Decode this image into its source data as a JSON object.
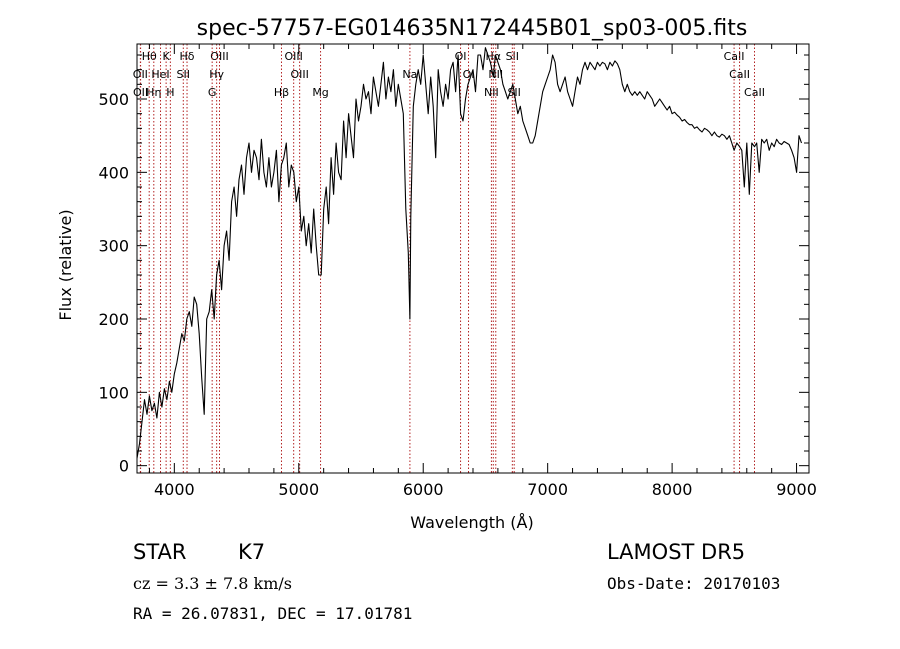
{
  "chart_data": {
    "type": "line",
    "title": "spec-57757-EG014635N172445B01_sp03-005.fits",
    "xlabel": "Wavelength (Å)",
    "ylabel": "Flux (relative)",
    "xlim": [
      3700,
      9100
    ],
    "ylim": [
      -10,
      575
    ],
    "x_ticks": [
      4000,
      5000,
      6000,
      7000,
      8000,
      9000
    ],
    "y_ticks": [
      0,
      100,
      200,
      300,
      400,
      500
    ],
    "grid": false,
    "series": [
      {
        "name": "",
        "x": [
          3700,
          3720,
          3740,
          3760,
          3780,
          3800,
          3820,
          3840,
          3860,
          3880,
          3900,
          3920,
          3940,
          3960,
          3980,
          4000,
          4020,
          4040,
          4060,
          4080,
          4100,
          4120,
          4140,
          4160,
          4180,
          4200,
          4220,
          4240,
          4260,
          4280,
          4300,
          4320,
          4340,
          4360,
          4380,
          4400,
          4420,
          4440,
          4460,
          4480,
          4500,
          4520,
          4540,
          4560,
          4580,
          4600,
          4620,
          4640,
          4660,
          4680,
          4700,
          4720,
          4740,
          4760,
          4780,
          4800,
          4820,
          4840,
          4860,
          4880,
          4900,
          4920,
          4940,
          4960,
          4980,
          5000,
          5020,
          5040,
          5060,
          5080,
          5100,
          5120,
          5140,
          5160,
          5180,
          5200,
          5220,
          5240,
          5260,
          5280,
          5300,
          5320,
          5340,
          5360,
          5380,
          5400,
          5420,
          5440,
          5460,
          5480,
          5500,
          5520,
          5540,
          5560,
          5580,
          5600,
          5620,
          5640,
          5660,
          5680,
          5700,
          5720,
          5740,
          5760,
          5780,
          5800,
          5820,
          5840,
          5860,
          5880,
          5893,
          5900,
          5920,
          5940,
          5960,
          5980,
          6000,
          6020,
          6040,
          6060,
          6080,
          6100,
          6120,
          6140,
          6160,
          6180,
          6200,
          6220,
          6240,
          6260,
          6280,
          6300,
          6320,
          6340,
          6360,
          6380,
          6400,
          6420,
          6440,
          6460,
          6480,
          6500,
          6520,
          6540,
          6563,
          6580,
          6600,
          6620,
          6640,
          6660,
          6680,
          6700,
          6720,
          6740,
          6760,
          6780,
          6800,
          6820,
          6840,
          6860,
          6880,
          6900,
          6920,
          6940,
          6960,
          6980,
          7000,
          7020,
          7040,
          7060,
          7080,
          7100,
          7120,
          7140,
          7160,
          7180,
          7200,
          7220,
          7240,
          7260,
          7280,
          7300,
          7320,
          7340,
          7360,
          7380,
          7400,
          7420,
          7440,
          7460,
          7480,
          7500,
          7520,
          7540,
          7560,
          7580,
          7600,
          7620,
          7640,
          7660,
          7680,
          7700,
          7720,
          7740,
          7760,
          7780,
          7800,
          7820,
          7840,
          7860,
          7880,
          7900,
          7920,
          7940,
          7960,
          7980,
          8000,
          8020,
          8040,
          8060,
          8080,
          8100,
          8120,
          8140,
          8160,
          8180,
          8200,
          8220,
          8240,
          8260,
          8280,
          8300,
          8320,
          8340,
          8360,
          8380,
          8400,
          8420,
          8440,
          8460,
          8480,
          8498,
          8520,
          8542,
          8560,
          8580,
          8600,
          8620,
          8640,
          8662,
          8680,
          8700,
          8720,
          8740,
          8760,
          8780,
          8800,
          8820,
          8840,
          8860,
          8880,
          8900,
          8920,
          8940,
          8960,
          8980,
          9000,
          9020,
          9040
        ],
        "y": [
          10,
          30,
          60,
          90,
          70,
          95,
          75,
          85,
          65,
          100,
          80,
          105,
          90,
          115,
          100,
          125,
          140,
          160,
          180,
          170,
          200,
          210,
          190,
          230,
          220,
          180,
          120,
          70,
          200,
          210,
          240,
          200,
          260,
          280,
          240,
          300,
          320,
          280,
          360,
          380,
          340,
          390,
          410,
          370,
          420,
          440,
          400,
          430,
          420,
          390,
          445,
          400,
          380,
          420,
          380,
          400,
          430,
          360,
          410,
          420,
          440,
          380,
          410,
          400,
          360,
          380,
          320,
          340,
          300,
          330,
          290,
          350,
          300,
          260,
          260,
          350,
          380,
          330,
          420,
          370,
          440,
          400,
          390,
          470,
          420,
          480,
          450,
          420,
          500,
          470,
          490,
          520,
          500,
          510,
          480,
          530,
          510,
          490,
          520,
          550,
          500,
          530,
          510,
          540,
          490,
          520,
          500,
          480,
          350,
          290,
          200,
          340,
          490,
          520,
          540,
          520,
          560,
          520,
          480,
          530,
          490,
          420,
          540,
          510,
          490,
          520,
          500,
          540,
          550,
          510,
          560,
          480,
          470,
          500,
          520,
          530,
          540,
          510,
          560,
          560,
          540,
          570,
          560,
          550,
          530,
          560,
          550,
          540,
          520,
          510,
          500,
          510,
          520,
          500,
          480,
          490,
          470,
          460,
          450,
          440,
          440,
          450,
          470,
          490,
          510,
          520,
          530,
          540,
          560,
          550,
          520,
          510,
          520,
          530,
          510,
          500,
          490,
          510,
          530,
          520,
          540,
          550,
          540,
          550,
          545,
          540,
          550,
          545,
          550,
          548,
          540,
          550,
          545,
          552,
          548,
          540,
          520,
          510,
          520,
          510,
          505,
          510,
          505,
          510,
          505,
          500,
          510,
          505,
          500,
          490,
          495,
          500,
          495,
          490,
          485,
          490,
          480,
          482,
          478,
          475,
          470,
          472,
          468,
          465,
          465,
          460,
          462,
          458,
          455,
          460,
          458,
          455,
          450,
          455,
          450,
          448,
          452,
          450,
          445,
          450,
          440,
          430,
          440,
          435,
          430,
          380,
          440,
          370,
          440,
          435,
          440,
          400,
          445,
          440,
          445,
          430,
          440,
          435,
          445,
          440,
          438,
          442,
          440,
          438,
          430,
          420,
          400,
          450,
          440
        ]
      }
    ],
    "line_markers": [
      {
        "label": "Hθ",
        "wavelength": 3798,
        "row": 1
      },
      {
        "label": "OII",
        "wavelength": 3727,
        "row": 2
      },
      {
        "label": "OII",
        "wavelength": 3729,
        "row": 3
      },
      {
        "label": "Hη",
        "wavelength": 3835,
        "row": 3
      },
      {
        "label": "K",
        "wavelength": 3934,
        "row": 1
      },
      {
        "label": "HeI",
        "wavelength": 3889,
        "row": 2
      },
      {
        "label": "H",
        "wavelength": 3968,
        "row": 3
      },
      {
        "label": "SII",
        "wavelength": 4072,
        "row": 2
      },
      {
        "label": "Hδ",
        "wavelength": 4102,
        "row": 1
      },
      {
        "label": "OIII",
        "wavelength": 4363,
        "row": 1
      },
      {
        "label": "Hγ",
        "wavelength": 4340,
        "row": 2
      },
      {
        "label": "G",
        "wavelength": 4304,
        "row": 3
      },
      {
        "label": "Hβ",
        "wavelength": 4861,
        "row": 3
      },
      {
        "label": "OIII",
        "wavelength": 4959,
        "row": 1
      },
      {
        "label": "OIII",
        "wavelength": 5007,
        "row": 2
      },
      {
        "label": "Mg",
        "wavelength": 5175,
        "row": 3
      },
      {
        "label": "Na",
        "wavelength": 5893,
        "row": 2
      },
      {
        "label": "OI",
        "wavelength": 6300,
        "row": 1
      },
      {
        "label": "OI",
        "wavelength": 6364,
        "row": 2
      },
      {
        "label": "Hα",
        "wavelength": 6563,
        "row": 1
      },
      {
        "label": "NII",
        "wavelength": 6583,
        "row": 2
      },
      {
        "label": "NII",
        "wavelength": 6548,
        "row": 3
      },
      {
        "label": "SII",
        "wavelength": 6716,
        "row": 1
      },
      {
        "label": "SII",
        "wavelength": 6731,
        "row": 3
      },
      {
        "label": "CaII",
        "wavelength": 8498,
        "row": 1
      },
      {
        "label": "CaII",
        "wavelength": 8542,
        "row": 2
      },
      {
        "label": "CaII",
        "wavelength": 8662,
        "row": 3
      }
    ],
    "marker_color": "#b22222"
  },
  "info": {
    "class": "STAR",
    "subclass": "K7",
    "survey": "LAMOST  DR5",
    "cz": "cz = 3.3 ± 7.8 km/s",
    "obs_date": "Obs-Date: 20170103",
    "ra_dec": "RA =  26.07831, DEC =  17.01781"
  }
}
